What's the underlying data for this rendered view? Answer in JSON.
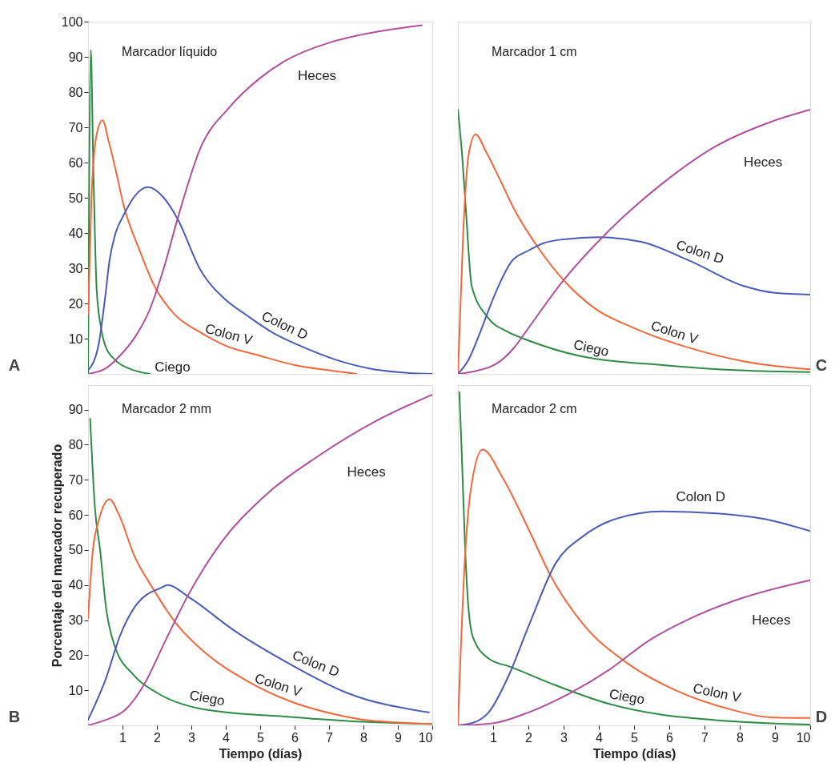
{
  "chart_data": [
    {
      "type": "line",
      "title": "Marcador líquido",
      "annotations": [
        "A"
      ],
      "xlim": [
        0,
        10
      ],
      "ylim": [
        0,
        100
      ],
      "yticks": [
        10,
        20,
        30,
        40,
        50,
        60,
        70,
        80,
        90,
        100
      ],
      "tick_labels": "y",
      "series": [
        {
          "name": "Ciego",
          "color": "#2e8b45",
          "x": [
            0,
            0.08,
            0.15,
            0.25,
            0.37,
            0.5,
            0.78,
            1.2,
            1.8
          ],
          "values": [
            0,
            92,
            60,
            24,
            13.5,
            8,
            4,
            1.5,
            0
          ]
        },
        {
          "name": "Colon V",
          "color": "#f2683c",
          "x": [
            0,
            0.1,
            0.25,
            0.42,
            0.6,
            0.8,
            1.03,
            1.5,
            1.94,
            2.5,
            3.26,
            4,
            4.9,
            6,
            7,
            7.8
          ],
          "values": [
            17,
            50,
            68,
            72,
            66,
            58,
            48,
            35,
            24.7,
            17,
            11.8,
            8,
            5.4,
            2.5,
            1,
            0
          ]
        },
        {
          "name": "Colon D",
          "color": "#4a5cb5",
          "x": [
            0,
            0.3,
            0.5,
            0.62,
            0.8,
            1.03,
            1.4,
            1.74,
            2.2,
            2.6,
            3.26,
            4,
            4.6,
            5.4,
            6.2,
            7.2,
            8.2,
            9,
            10
          ],
          "values": [
            1,
            8,
            22,
            32,
            40,
            45,
            51,
            53,
            50,
            44,
            29.6,
            21,
            16.7,
            11.5,
            7.8,
            4,
            1.5,
            0.5,
            0
          ]
        },
        {
          "name": "Heces",
          "color": "#b04f9c",
          "x": [
            0,
            0.5,
            0.95,
            1.4,
            1.78,
            2.2,
            2.6,
            3.26,
            4.1,
            5,
            5.7,
            7,
            7.8,
            9.7
          ],
          "values": [
            0,
            1.5,
            5.4,
            11,
            18,
            30,
            44,
            64,
            75.6,
            84,
            88.7,
            94,
            96,
            99
          ]
        }
      ]
    },
    {
      "type": "line",
      "title": "Marcador 1 cm",
      "annotations": [
        "C"
      ],
      "xlim": [
        0,
        10
      ],
      "ylim": [
        0,
        100
      ],
      "tick_labels": false,
      "series": [
        {
          "name": "Ciego",
          "color": "#2e8b45",
          "x": [
            0,
            0.12,
            0.23,
            0.39,
            0.85,
            1.4,
            2,
            3.5,
            5.8,
            8,
            10
          ],
          "values": [
            75,
            62,
            46,
            25,
            16,
            12,
            9.5,
            5,
            2.5,
            1,
            0.5
          ]
        },
        {
          "name": "Colon V",
          "color": "#f2683c",
          "x": [
            0,
            0.15,
            0.3,
            0.5,
            0.8,
            1.2,
            1.6,
            2.3,
            3,
            3.9,
            5,
            6.6,
            8.1,
            10
          ],
          "values": [
            0,
            40,
            62,
            68,
            63,
            55,
            46.7,
            35.5,
            26.6,
            18.5,
            13,
            7.3,
            3.6,
            1.3
          ]
        },
        {
          "name": "Colon D",
          "color": "#4a5cb5",
          "x": [
            0,
            0.3,
            0.6,
            0.85,
            1.2,
            1.53,
            2,
            2.4,
            3,
            4,
            5.2,
            6.6,
            8.1,
            9,
            10
          ],
          "values": [
            0,
            4,
            11,
            17.6,
            26,
            32,
            35,
            37,
            38.2,
            38.8,
            37.5,
            32,
            25,
            23,
            22.5
          ]
        },
        {
          "name": "Heces",
          "color": "#b04f9c",
          "x": [
            0,
            0.5,
            1.2,
            1.6,
            2,
            3,
            4.3,
            5.8,
            7.3,
            8.9,
            10
          ],
          "values": [
            0,
            0.8,
            3.6,
            7.5,
            13,
            26.6,
            40.8,
            54,
            64.5,
            71.6,
            75
          ]
        }
      ]
    },
    {
      "type": "line",
      "title": "Marcador 2 mm",
      "annotations": [
        "B"
      ],
      "xlabel": "Tiempo (días)",
      "ylabel": "Porcentaje del marcador recuperado",
      "xlim": [
        0,
        10
      ],
      "ylim": [
        0,
        97
      ],
      "xticks": [
        1,
        2,
        3,
        4,
        5,
        6,
        7,
        8,
        9,
        10
      ],
      "yticks": [
        10,
        20,
        30,
        40,
        50,
        60,
        70,
        80,
        90
      ],
      "series": [
        {
          "name": "Ciego",
          "color": "#2e8b45",
          "x": [
            0.06,
            0.2,
            0.35,
            0.52,
            0.76,
            1.34,
            2,
            3.4,
            5.86,
            8,
            10
          ],
          "values": [
            87.4,
            62,
            50,
            33.7,
            23,
            14.2,
            9.3,
            4.5,
            2.4,
            1,
            0.4
          ]
        },
        {
          "name": "Colon V",
          "color": "#f2683c",
          "x": [
            0,
            0.14,
            0.3,
            0.62,
            0.9,
            1.34,
            1.91,
            2.57,
            3.4,
            4.63,
            5.86,
            7.1,
            8,
            10
          ],
          "values": [
            30.5,
            50,
            58,
            64.5,
            60,
            48.4,
            38.6,
            28.9,
            20.7,
            12.6,
            6.9,
            3.3,
            1.6,
            0.4
          ]
        },
        {
          "name": "Colon D",
          "color": "#4a5cb5",
          "x": [
            0,
            0.52,
            0.93,
            1.42,
            2.16,
            2.3,
            2.98,
            4.22,
            5.86,
            7.51,
            9.9
          ],
          "values": [
            1.6,
            13.4,
            25.6,
            34.6,
            39.4,
            40,
            36.2,
            27.2,
            17.5,
            9.3,
            3.7
          ]
        },
        {
          "name": "Heces",
          "color": "#b04f9c",
          "x": [
            0,
            0.5,
            1.09,
            1.59,
            2.24,
            2.9,
            3.89,
            5.04,
            6.69,
            8.33,
            10
          ],
          "values": [
            0,
            1.5,
            4.5,
            11,
            24,
            37,
            52.4,
            64.6,
            76.8,
            86.6,
            94.3
          ]
        }
      ]
    },
    {
      "type": "line",
      "title": "Marcador 2 cm",
      "annotations": [
        "D"
      ],
      "xlabel": "Tiempo (días)",
      "xlim": [
        0,
        10
      ],
      "ylim": [
        0,
        97
      ],
      "xticks": [
        1,
        2,
        3,
        4,
        5,
        6,
        7,
        8,
        9,
        10
      ],
      "tick_labels": "x",
      "series": [
        {
          "name": "Ciego",
          "color": "#2e8b45",
          "x": [
            0.04,
            0.1,
            0.2,
            0.28,
            0.43,
            0.88,
            1.49,
            2.78,
            4.3,
            5.8,
            7.3,
            10
          ],
          "values": [
            95,
            80,
            51.6,
            36,
            25,
            19,
            16.7,
            11.4,
            6.1,
            3,
            1.5,
            0.2
          ]
        },
        {
          "name": "Colon V",
          "color": "#f2683c",
          "x": [
            0,
            0.2,
            0.36,
            0.7,
            1.27,
            2.03,
            2.64,
            3.55,
            4.84,
            6.2,
            7.72,
            8.86,
            10
          ],
          "values": [
            0,
            47.8,
            66.8,
            78.6,
            70.6,
            55.4,
            42.5,
            28.9,
            17.5,
            9.9,
            4.6,
            2.3,
            2.1
          ]
        },
        {
          "name": "Colon D",
          "color": "#4a5cb5",
          "x": [
            0,
            0.5,
            0.88,
            1.42,
            2.03,
            2.78,
            3.55,
            4.46,
            5.8,
            7.34,
            8.86,
            10
          ],
          "values": [
            0,
            1,
            3.8,
            13.7,
            28.9,
            46.3,
            53.9,
            58.8,
            61,
            60.4,
            58.5,
            55.4
          ]
        },
        {
          "name": "Heces",
          "color": "#b04f9c",
          "x": [
            0,
            1,
            2.03,
            3.17,
            4.3,
            5.44,
            6.58,
            8.1,
            10
          ],
          "values": [
            0,
            0.6,
            3.8,
            9.1,
            15.9,
            24.3,
            30.4,
            36.4,
            41.4
          ]
        }
      ]
    }
  ]
}
